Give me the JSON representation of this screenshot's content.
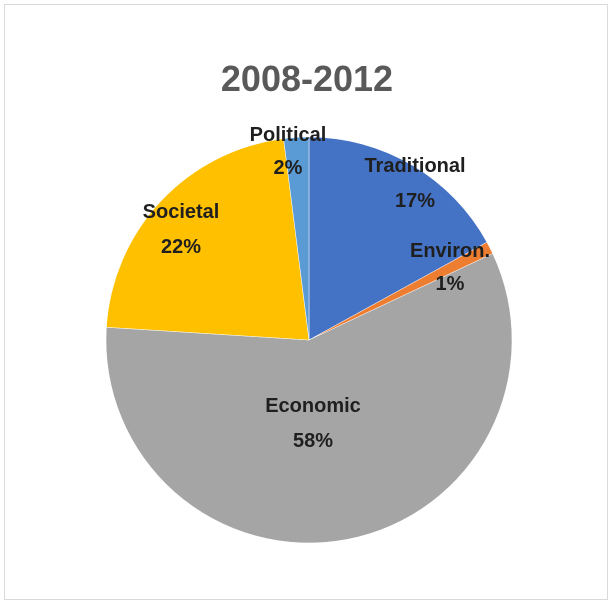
{
  "chart_data": {
    "type": "pie",
    "title": "2008-2012",
    "slices": [
      {
        "name": "Traditional",
        "value": 17,
        "label": "17%",
        "color": "#4472C4"
      },
      {
        "name": "Environ.",
        "value": 1,
        "label": "1%",
        "color": "#ED7D31"
      },
      {
        "name": "Economic",
        "value": 58,
        "label": "58%",
        "color": "#A5A5A5"
      },
      {
        "name": "Societal",
        "value": 22,
        "label": "22%",
        "color": "#FFC000"
      },
      {
        "name": "Political",
        "value": 2,
        "label": "2%",
        "color": "#5B9BD5"
      }
    ],
    "start_angle": "12 o'clock",
    "direction": "clockwise",
    "legend": "none"
  }
}
